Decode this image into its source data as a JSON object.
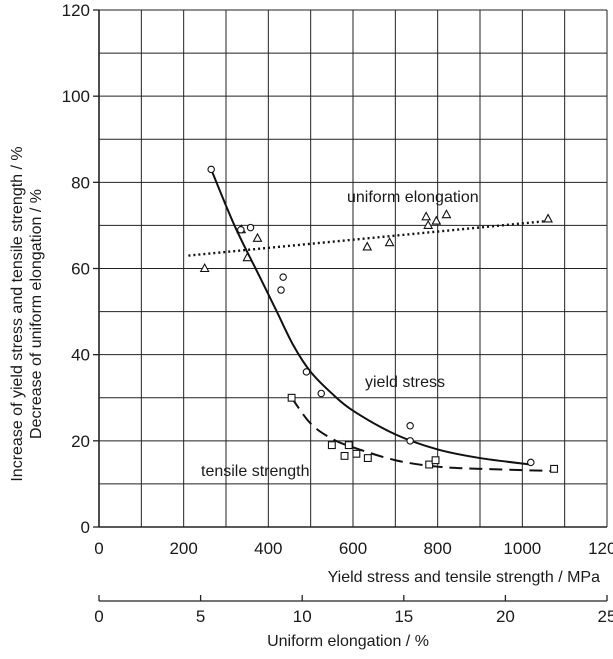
{
  "chart_data": {
    "type": "scatter",
    "title": "",
    "ylabel_line1": "Increase of yield stress and tensile strength / %",
    "ylabel_line2": "Decrease of uniform elongation / %",
    "x_axes": [
      {
        "label": "Yield stress and tensile strength / MPa",
        "range": [
          0,
          1200
        ],
        "ticks": [
          0,
          200,
          400,
          600,
          800,
          1000,
          1200
        ]
      },
      {
        "label": "Uniform elongation / %",
        "range": [
          0,
          25
        ],
        "ticks": [
          0,
          5,
          10,
          15,
          20,
          25
        ]
      }
    ],
    "y_axis": {
      "range": [
        0,
        120
      ],
      "ticks": [
        0,
        20,
        40,
        60,
        80,
        100,
        120
      ]
    },
    "grid": true,
    "series": [
      {
        "name": "uniform elongation",
        "x_axis": "Uniform elongation / %",
        "marker": "triangle",
        "line": "dotted",
        "points": [
          [
            5.2,
            60
          ],
          [
            7.0,
            69
          ],
          [
            7.3,
            62.5
          ],
          [
            7.8,
            67
          ],
          [
            13.2,
            65
          ],
          [
            14.3,
            66
          ],
          [
            16.1,
            72
          ],
          [
            16.2,
            70
          ],
          [
            16.6,
            71
          ],
          [
            17.1,
            72.5
          ],
          [
            22.1,
            71.5
          ]
        ],
        "fit": [
          [
            4.4,
            63
          ],
          [
            22.0,
            71
          ]
        ]
      },
      {
        "name": "yield stress",
        "x_axis": "Yield stress and tensile strength / MPa",
        "marker": "circle",
        "line": "solid",
        "points": [
          [
            265,
            83
          ],
          [
            335,
            69
          ],
          [
            358,
            69.5
          ],
          [
            430,
            55
          ],
          [
            435,
            58
          ],
          [
            490,
            36
          ],
          [
            525,
            31
          ],
          [
            735,
            23.5
          ],
          [
            735,
            20
          ],
          [
            1020,
            15
          ]
        ],
        "fit": [
          [
            265,
            83
          ],
          [
            320,
            70
          ],
          [
            380,
            58
          ],
          [
            420,
            50
          ],
          [
            460,
            42
          ],
          [
            500,
            36
          ],
          [
            550,
            31
          ],
          [
            600,
            27
          ],
          [
            700,
            21.5
          ],
          [
            800,
            18
          ],
          [
            900,
            16
          ],
          [
            1020,
            14.5
          ]
        ]
      },
      {
        "name": "tensile strength",
        "x_axis": "Yield stress and tensile strength / MPa",
        "marker": "square",
        "line": "dashed",
        "points": [
          [
            455,
            30
          ],
          [
            550,
            19
          ],
          [
            580,
            16.5
          ],
          [
            590,
            19
          ],
          [
            608,
            17
          ],
          [
            635,
            16
          ],
          [
            780,
            14.5
          ],
          [
            795,
            15.5
          ],
          [
            1075,
            13.5
          ]
        ],
        "fit": [
          [
            455,
            30
          ],
          [
            500,
            24
          ],
          [
            550,
            20.5
          ],
          [
            600,
            18.5
          ],
          [
            700,
            15.5
          ],
          [
            800,
            14
          ],
          [
            900,
            13.5
          ],
          [
            1075,
            13
          ]
        ]
      }
    ],
    "annotations": [
      "uniform elongation",
      "yield stress",
      "tensile strength"
    ]
  }
}
